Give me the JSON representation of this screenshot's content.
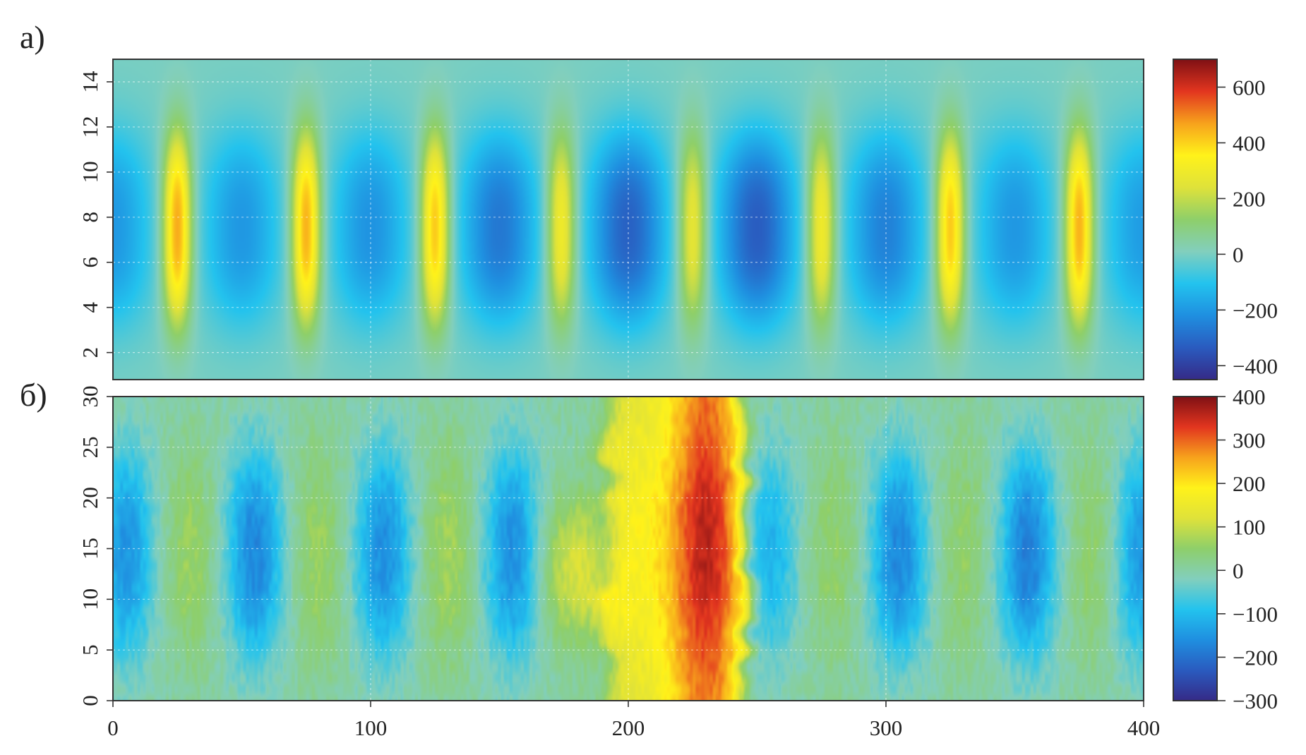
{
  "figure": {
    "panels": [
      {
        "label": "а)"
      },
      {
        "label": "б)"
      }
    ]
  },
  "colors": {
    "scale": [
      "#352a87",
      "#2a5bbf",
      "#1f8fe0",
      "#23c3ee",
      "#82cfbd",
      "#8ecf6a",
      "#dfe23a",
      "#fff21a",
      "#f7a21c",
      "#e2351f",
      "#7f1014"
    ]
  },
  "chart_data": [
    {
      "type": "heatmap",
      "panel": "а)",
      "title": "",
      "xlabel": "",
      "ylabel": "",
      "xlim": [
        0,
        400
      ],
      "ylim": [
        0.8,
        15
      ],
      "x_ticks": [
        0,
        100,
        200,
        300,
        400
      ],
      "x_tick_labels_shown": false,
      "y_ticks": [
        2,
        4,
        6,
        8,
        10,
        12,
        14
      ],
      "grid": true,
      "colorbar": {
        "min": -450,
        "max": 700,
        "ticks": [
          600,
          400,
          200,
          0,
          -200,
          -400
        ],
        "tick_labels": [
          "600",
          "400",
          "200",
          "0",
          "−200",
          "−400"
        ]
      },
      "field_description": "field varies along x with y-envelope peaking near y = 7.5",
      "peaks": [
        {
          "x": 25,
          "value": 480
        },
        {
          "x": 75,
          "value": 470
        },
        {
          "x": 125,
          "value": 440
        },
        {
          "x": 174,
          "value": 330
        },
        {
          "x": 225,
          "value": 300
        },
        {
          "x": 275,
          "value": 330
        },
        {
          "x": 325,
          "value": 440
        },
        {
          "x": 375,
          "value": 470
        }
      ],
      "troughs": [
        {
          "x": 0,
          "value": -200
        },
        {
          "x": 50,
          "value": -200
        },
        {
          "x": 100,
          "value": -210
        },
        {
          "x": 150,
          "value": -270
        },
        {
          "x": 200,
          "value": -320
        },
        {
          "x": 250,
          "value": -330
        },
        {
          "x": 300,
          "value": -250
        },
        {
          "x": 350,
          "value": -200
        },
        {
          "x": 400,
          "value": -190
        }
      ]
    },
    {
      "type": "heatmap",
      "panel": "б)",
      "title": "",
      "xlabel": "",
      "ylabel": "",
      "xlim": [
        0,
        400
      ],
      "ylim": [
        0,
        30
      ],
      "x_ticks": [
        0,
        100,
        200,
        300,
        400
      ],
      "x_tick_labels": [
        "0",
        "100",
        "200",
        "300",
        "400"
      ],
      "y_ticks": [
        0,
        5,
        10,
        15,
        20,
        25,
        30
      ],
      "grid": true,
      "colorbar": {
        "min": -300,
        "max": 400,
        "ticks": [
          400,
          300,
          200,
          100,
          0,
          -100,
          -200,
          -300
        ],
        "tick_labels": [
          "400",
          "300",
          "200",
          "100",
          "0",
          "−100",
          "−200",
          "−300"
        ]
      },
      "field_description": "field varies along x with y-envelope peaking near y = 15; broad positive band around x = 190–245",
      "troughs": [
        {
          "x": 5,
          "value": -150
        },
        {
          "x": 55,
          "value": -170
        },
        {
          "x": 105,
          "value": -160
        },
        {
          "x": 155,
          "value": -160
        },
        {
          "x": 255,
          "value": -110
        },
        {
          "x": 305,
          "value": -170
        },
        {
          "x": 355,
          "value": -180
        },
        {
          "x": 400,
          "value": -150
        }
      ],
      "weak_positive": [
        {
          "x": 30,
          "value": 60
        },
        {
          "x": 80,
          "value": 60
        },
        {
          "x": 130,
          "value": 70
        },
        {
          "x": 280,
          "value": 50
        },
        {
          "x": 330,
          "value": 50
        },
        {
          "x": 380,
          "value": 50
        }
      ],
      "band": {
        "x_start": 192,
        "x_end": 245,
        "core_x": 230,
        "core_value": 360,
        "edge_value": 170
      }
    }
  ]
}
